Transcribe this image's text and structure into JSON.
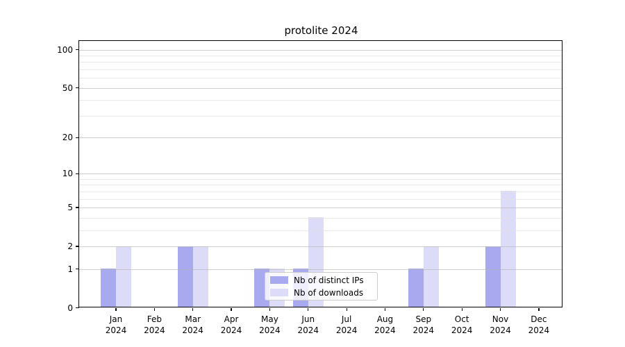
{
  "chart_data": {
    "type": "bar",
    "title": "protolite 2024",
    "categories": [
      "Jan",
      "Feb",
      "Mar",
      "Apr",
      "May",
      "Jun",
      "Jul",
      "Aug",
      "Sep",
      "Oct",
      "Nov",
      "Dec"
    ],
    "year": "2024",
    "series": [
      {
        "name": "Nb of distinct IPs",
        "color": "#a9a9ef",
        "values": [
          1,
          0,
          2,
          0,
          1,
          1,
          0,
          0,
          1,
          0,
          2,
          0
        ]
      },
      {
        "name": "Nb of downloads",
        "color": "#dcdcf8",
        "values": [
          2,
          0,
          2,
          0,
          1,
          4,
          0,
          0,
          2,
          0,
          7,
          0
        ]
      }
    ],
    "yscale": "log1p",
    "ylim": [
      0,
      116
    ],
    "yticks": [
      0,
      1,
      2,
      5,
      10,
      20,
      50,
      100
    ],
    "yticks_minor": [
      3,
      4,
      6,
      7,
      8,
      9,
      30,
      40,
      60,
      70,
      80,
      90
    ],
    "grid": true,
    "legend_position": "lower center",
    "colors": {
      "grid_major": "#d3d3d3",
      "grid_minor": "#e9e9e9",
      "axis": "#000000",
      "background": "#ffffff"
    }
  }
}
